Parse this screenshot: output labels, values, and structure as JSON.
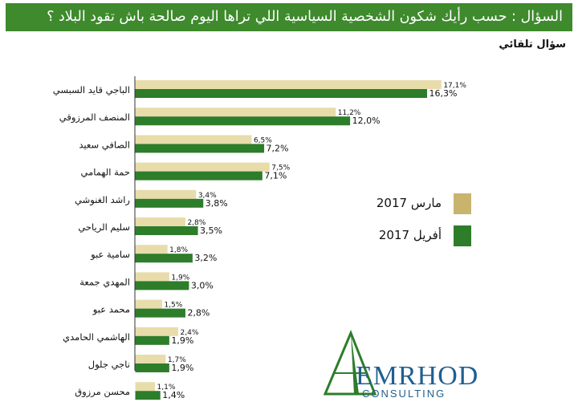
{
  "header": {
    "title": "السؤال :  حسب رأيك شكون الشخصية  السياسية اللي تراها اليوم صالحة باش تقود البلاد ؟",
    "subtitle": "سؤال تلقائي"
  },
  "colors": {
    "banner": "#3e8a2d",
    "march": "#e8dcaa",
    "april": "#2d7d2a",
    "legend_march": "#c9b46e",
    "legend_april": "#2d7d2a"
  },
  "legend": [
    {
      "label": "مارس 2017"
    },
    {
      "label": "أفريل 2017"
    }
  ],
  "chart_data": {
    "type": "bar",
    "orientation": "horizontal",
    "categories": [
      "الباجي قايد السبسي",
      "المنصف المرزوقي",
      "الصافي سعيد",
      "حمة الهمامي",
      "راشد الغنوشي",
      "سليم الرياحي",
      "سامية عبو",
      "المهدي جمعة",
      "محمد عبو",
      "الهاشمي الحامدي",
      "ناجي جلول",
      "محسن مرزوق"
    ],
    "series": [
      {
        "name": "مارس 2017",
        "values": [
          17.1,
          11.2,
          6.5,
          7.5,
          3.4,
          2.8,
          1.8,
          1.9,
          1.5,
          2.4,
          1.7,
          1.1
        ],
        "labels": [
          "17,1%",
          "11,2%",
          "6,5%",
          "7,5%",
          "3,4%",
          "2,8%",
          "1,8%",
          "1,9%",
          "1,5%",
          "2,4%",
          "1,7%",
          "1,1%"
        ]
      },
      {
        "name": "أفريل 2017",
        "values": [
          16.3,
          12.0,
          7.2,
          7.1,
          3.8,
          3.5,
          3.2,
          3.0,
          2.8,
          1.9,
          1.9,
          1.4
        ],
        "labels": [
          "16,3%",
          "12,0%",
          "7,2%",
          "7,1%",
          "3,8%",
          "3,5%",
          "3,2%",
          "3,0%",
          "2,8%",
          "1,9%",
          "1,9%",
          "1,4%"
        ]
      }
    ],
    "legend_position": "right",
    "grid": false
  },
  "logo": {
    "name": "EMRHOD",
    "tagline": "CONSULTING"
  }
}
